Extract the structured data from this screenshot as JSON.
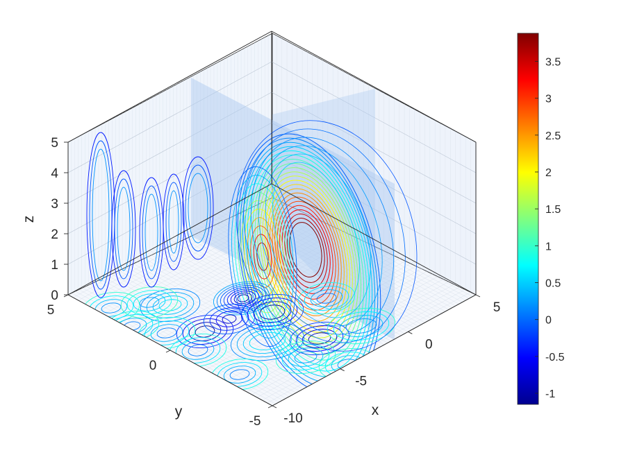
{
  "chart_data": {
    "type": "contour",
    "title": "",
    "xlabel": "x",
    "ylabel": "y",
    "zlabel": "z",
    "xlim": [
      -10,
      5
    ],
    "ylim": [
      -5,
      5
    ],
    "zlim": [
      0,
      5
    ],
    "x_ticks": [
      "-10",
      "-5",
      "0",
      "5"
    ],
    "y_ticks": [
      "-5",
      "0",
      "5"
    ],
    "z_ticks": [
      "0",
      "1",
      "2",
      "3",
      "4",
      "5"
    ],
    "colorbar": {
      "colormap": "jet",
      "range": [
        -1.15,
        3.88
      ],
      "ticks": [
        "-1",
        "-0.5",
        "0",
        "0.5",
        "1",
        "1.5",
        "2",
        "2.5",
        "3",
        "3.5"
      ]
    },
    "grid": "on",
    "slices": [
      {
        "plane": "z",
        "value": 0
      },
      {
        "plane": "x",
        "value": 0
      },
      {
        "plane": "y",
        "value": 0
      }
    ]
  }
}
